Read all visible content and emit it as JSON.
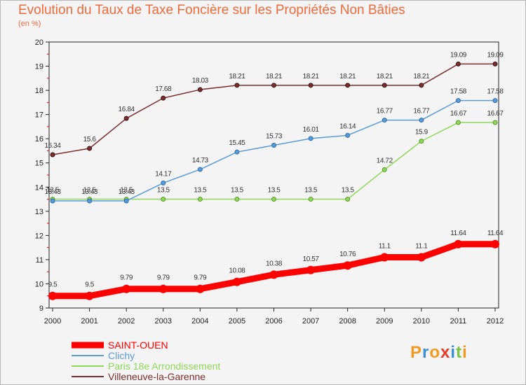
{
  "title": "Evolution du Taux de Taxe Foncière sur les Propriétés Non Bâties",
  "subtitle": "(en %)",
  "logo": {
    "text": "Proxiti",
    "colors": [
      "#f29a1f",
      "#3b8fd3",
      "#f29a1f",
      "#e53b2c",
      "#3b8fd3",
      "#7cc242",
      "#f29a1f"
    ]
  },
  "chart_data": {
    "type": "line",
    "x": [
      2000,
      2001,
      2002,
      2003,
      2004,
      2005,
      2006,
      2007,
      2008,
      2009,
      2010,
      2011,
      2012
    ],
    "ylim": [
      9,
      20
    ],
    "yticks": [
      9,
      10,
      11,
      12,
      13,
      14,
      15,
      16,
      17,
      18,
      19,
      20
    ],
    "grid": false,
    "legend": "bottom-left",
    "series": [
      {
        "name": "SAINT-OUEN",
        "color": "#ff0000",
        "values": [
          9.5,
          9.5,
          9.79,
          9.79,
          9.79,
          10.08,
          10.38,
          10.57,
          10.76,
          11.1,
          11.1,
          11.64,
          11.64
        ],
        "labels": [
          "9.5",
          "9.5",
          "9.79",
          "9.79",
          "9.79",
          "10.08",
          "10.38",
          "10.57",
          "10.76",
          "11.1",
          "11.1",
          "11.64",
          "11.64"
        ]
      },
      {
        "name": "Clichy",
        "color": "#5b9bd5",
        "values": [
          13.43,
          13.43,
          13.43,
          14.17,
          14.73,
          15.45,
          15.73,
          16.01,
          16.14,
          16.77,
          16.77,
          17.58,
          17.58
        ],
        "labels": [
          "13.43",
          "13.43",
          "13.43",
          "14.17",
          "14.73",
          "15.45",
          "15.73",
          "16.01",
          "16.14",
          "16.77",
          "16.77",
          "17.58",
          "17.58"
        ]
      },
      {
        "name": "Paris 18e  Arrondissement",
        "color": "#8fd65a",
        "values": [
          13.5,
          13.5,
          13.5,
          13.5,
          13.5,
          13.5,
          13.5,
          13.5,
          13.5,
          14.72,
          15.9,
          16.67,
          16.67
        ],
        "labels": [
          "13.5",
          "13.5",
          "13.5",
          "13.5",
          "13.5",
          "13.5",
          "13.5",
          "13.5",
          "13.5",
          "14.72",
          "15.9",
          "16.67",
          "16.67"
        ]
      },
      {
        "name": "Villeneuve-la-Garenne",
        "color": "#7a2e2e",
        "values": [
          15.34,
          15.6,
          16.84,
          17.68,
          18.03,
          18.21,
          18.21,
          18.21,
          18.21,
          18.21,
          18.21,
          19.09,
          19.09
        ],
        "labels": [
          "15.34",
          "15.6",
          "16.84",
          "17.68",
          "18.03",
          "18.21",
          "18.21",
          "18.21",
          "18.21",
          "18.21",
          "18.21",
          "19.09",
          "19.09"
        ]
      }
    ]
  }
}
